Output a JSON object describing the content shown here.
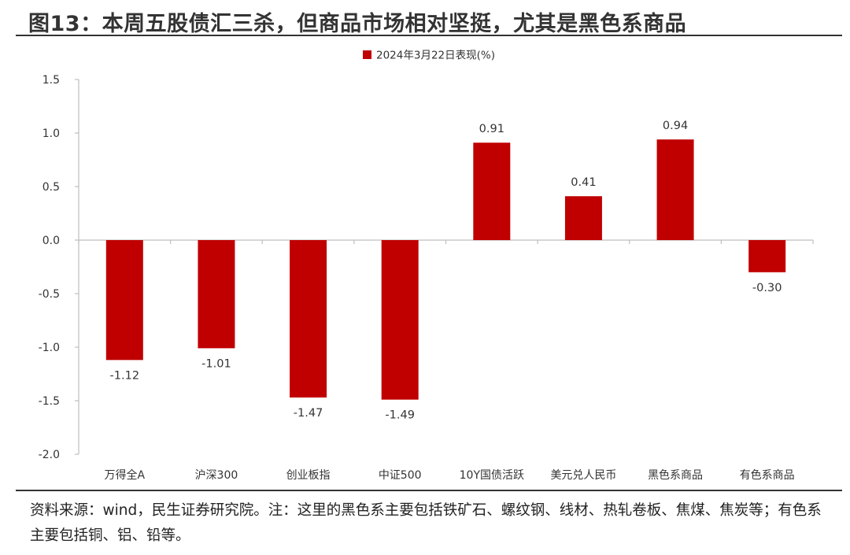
{
  "figure": {
    "title": "图13：本周五股债汇三杀，但商品市场相对坚挺，尤其是黑色系商品",
    "source_note": "资料来源：wind，民生证券研究院。注：这里的黑色系主要包括铁矿石、螺纹钢、线材、热轧卷板、焦煤、焦炭等；有色系主要包括铜、铝、铅等。"
  },
  "colors": {
    "bar": "#C00000",
    "axis": "#BFBFBF",
    "text": "#333333"
  },
  "chart_data": {
    "type": "bar",
    "title": "",
    "xlabel": "",
    "ylabel": "",
    "legend": {
      "position": "top-center",
      "entries": [
        "2024年3月22日表现(%)"
      ]
    },
    "grid": false,
    "categories": [
      "万得全A",
      "沪深300",
      "创业板指",
      "中证500",
      "10Y国债活跃",
      "美元兑人民币",
      "黑色系商品",
      "有色系商品"
    ],
    "series": [
      {
        "name": "2024年3月22日表现(%)",
        "values": [
          -1.12,
          -1.01,
          -1.47,
          -1.49,
          0.91,
          0.41,
          0.94,
          -0.3
        ],
        "data_labels": [
          "-1.12",
          "-1.01",
          "-1.47",
          "-1.49",
          "0.91",
          "0.41",
          "0.94",
          "-0.30"
        ]
      }
    ],
    "ylim": [
      -2.0,
      1.5
    ],
    "yticks": [
      1.5,
      1.0,
      0.5,
      0.0,
      -0.5,
      -1.0,
      -1.5,
      -2.0
    ],
    "ytick_labels": [
      "1.5",
      "1.0",
      "0.5",
      "0.0",
      "-0.5",
      "-1.0",
      "-1.5",
      "-2.0"
    ]
  }
}
